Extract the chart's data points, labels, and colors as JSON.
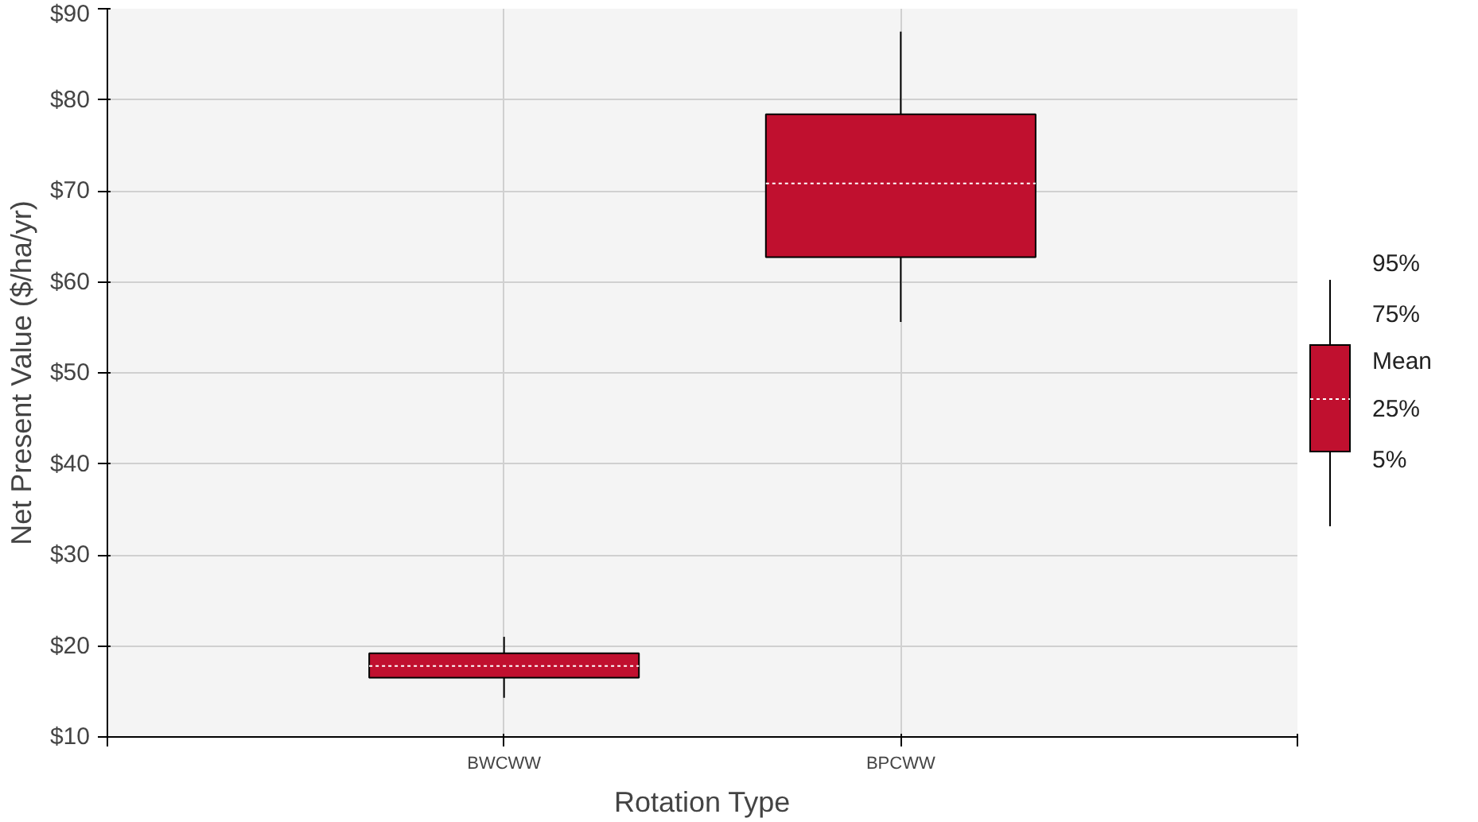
{
  "chart_data": {
    "type": "box",
    "xlabel": "Rotation Type",
    "ylabel": "Net Present Value ($/ha/yr)",
    "categories": [
      "BWCWW",
      "BPCWW"
    ],
    "boxes": [
      {
        "low": 14.3,
        "q1": 16.5,
        "mean": 17.8,
        "q3": 19.2,
        "high": 21.0
      },
      {
        "low": 55.6,
        "q1": 62.7,
        "mean": 70.8,
        "q3": 78.4,
        "high": 87.5
      }
    ],
    "color": "#c0102f",
    "ylim": [
      10,
      90
    ],
    "yticks": [
      {
        "value": 10,
        "label": "$10"
      },
      {
        "value": 20,
        "label": "$20"
      },
      {
        "value": 30,
        "label": "$30"
      },
      {
        "value": 40,
        "label": "$40"
      },
      {
        "value": 50,
        "label": "$50"
      },
      {
        "value": 60,
        "label": "$60"
      },
      {
        "value": 70,
        "label": "$70"
      },
      {
        "value": 80,
        "label": "$80"
      },
      {
        "value": 90,
        "label": "$90"
      }
    ],
    "grid": true,
    "annotations": [
      "95%",
      "75%",
      "Mean",
      "25%",
      "5%"
    ]
  }
}
